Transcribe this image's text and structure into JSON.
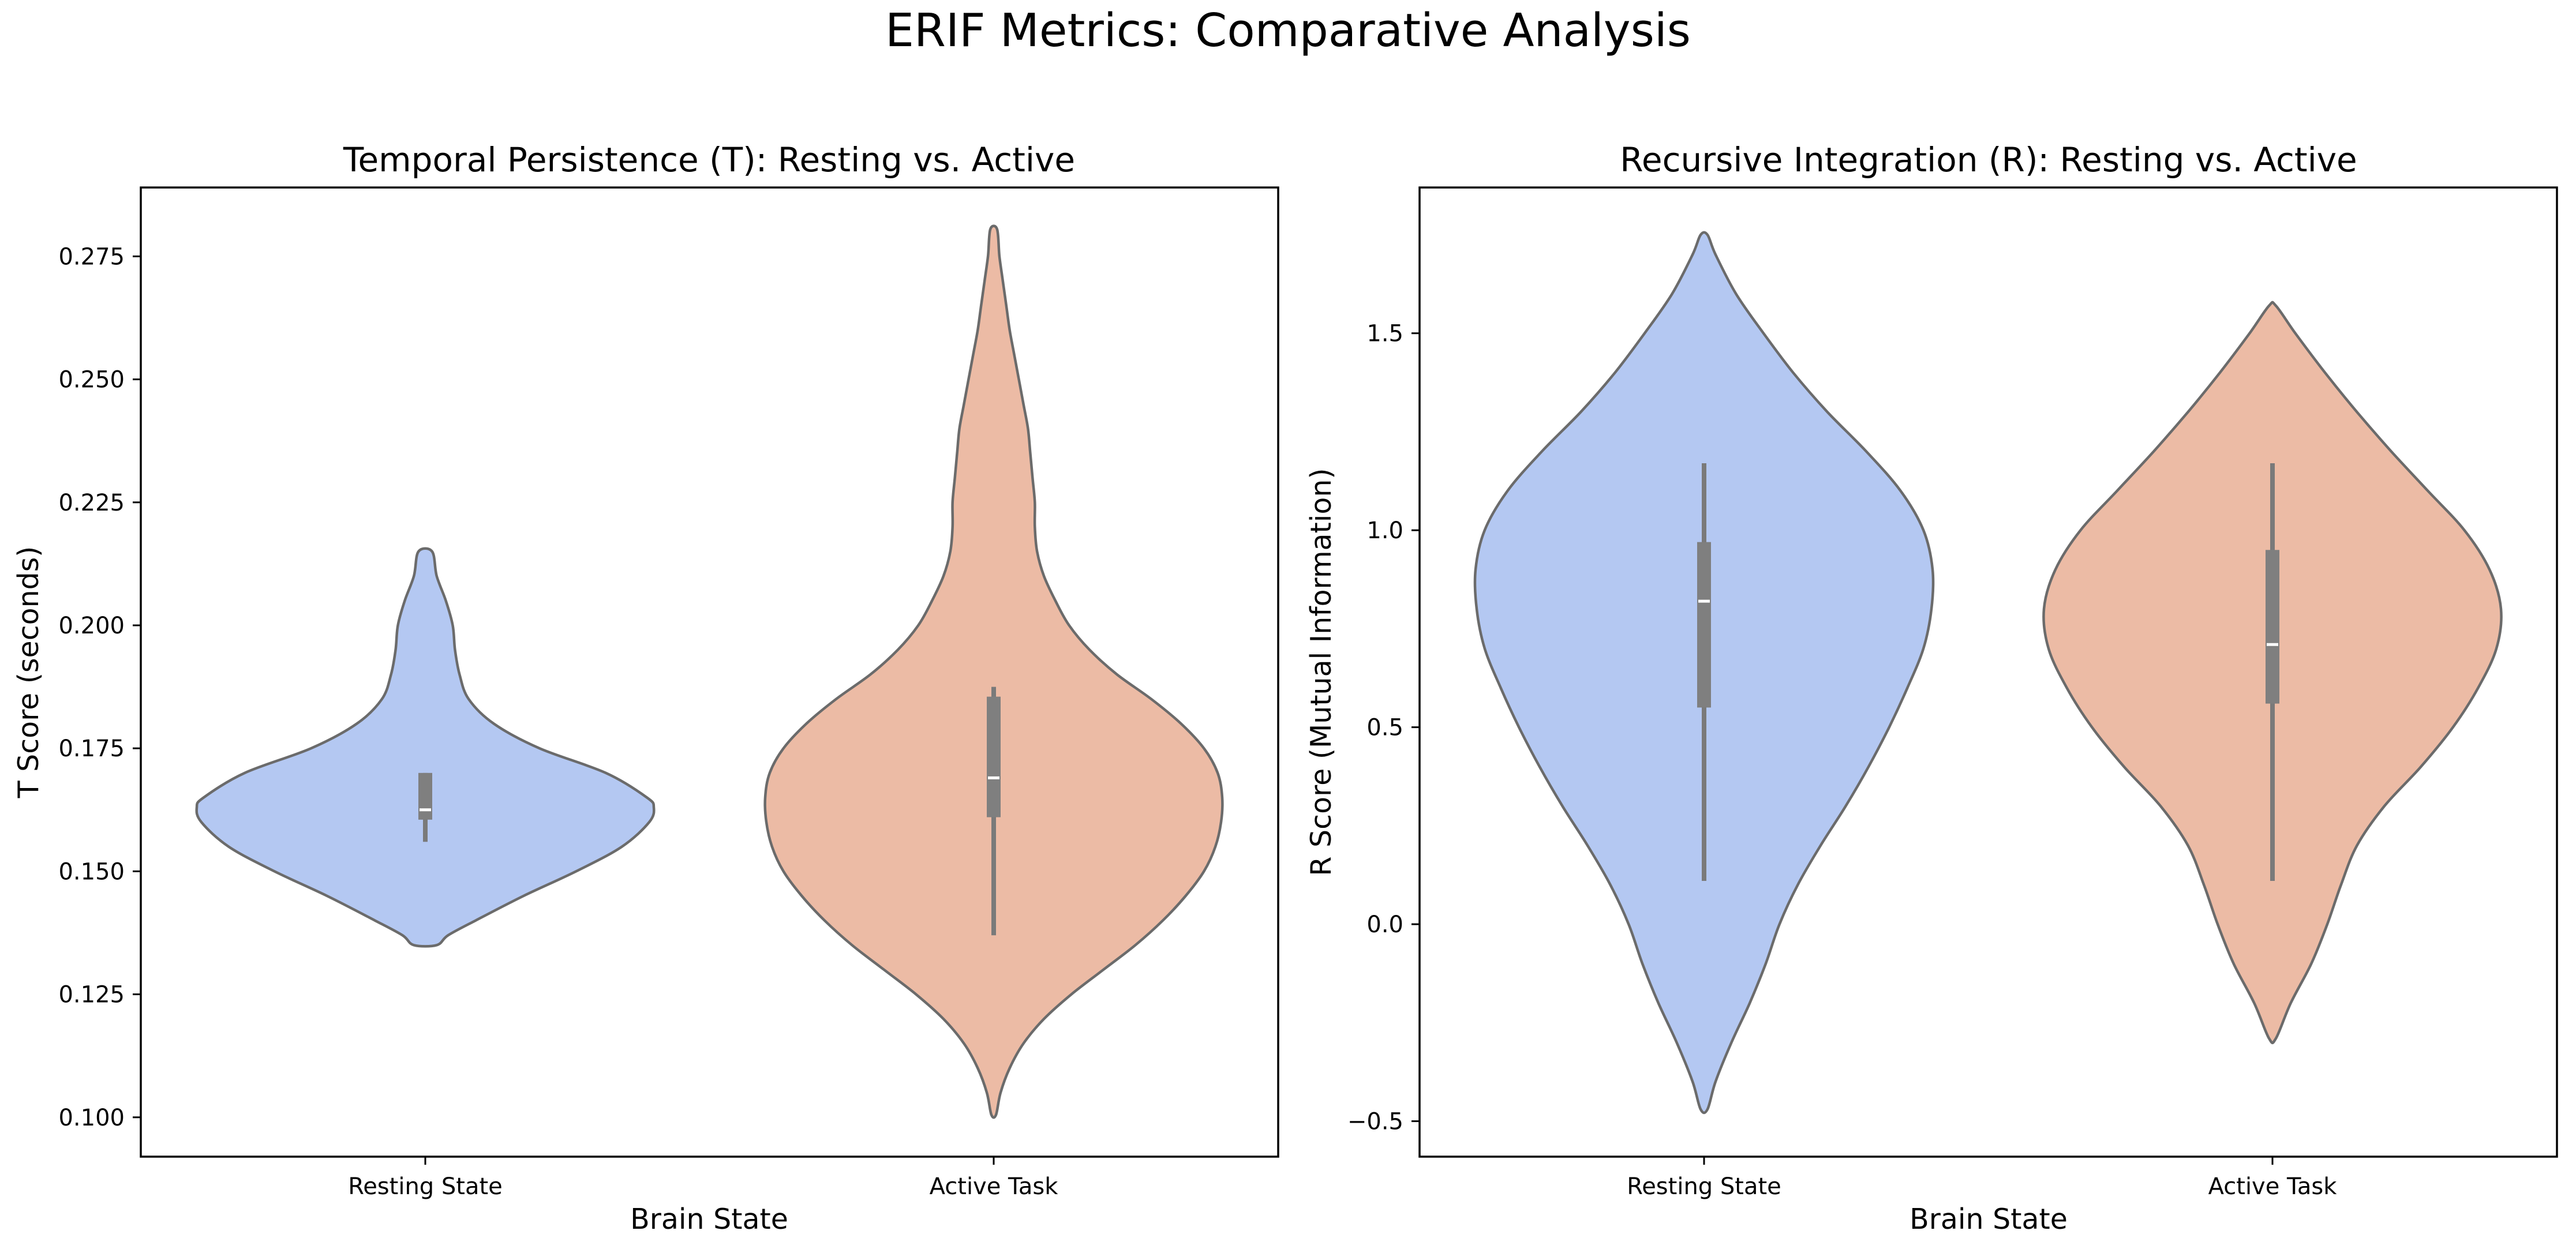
{
  "figure": {
    "suptitle": "ERIF Metrics: Comparative Analysis",
    "colors": {
      "resting": "#b4c8f2",
      "active": "#ecbba5",
      "outline": "#6b6b6b",
      "box": "#7f7f7f"
    }
  },
  "chart_data": [
    {
      "type": "violin",
      "title": "Temporal Persistence (T): Resting vs. Active",
      "xlabel": "Brain State",
      "ylabel": "T Score (seconds)",
      "categories": [
        "Resting State",
        "Active Task"
      ],
      "ylim": [
        0.092,
        0.289
      ],
      "yticks": [
        0.1,
        0.125,
        0.15,
        0.175,
        0.2,
        0.225,
        0.25,
        0.275
      ],
      "ytick_labels": [
        "0.100",
        "0.125",
        "0.150",
        "0.175",
        "0.200",
        "0.225",
        "0.250",
        "0.275"
      ],
      "grid": false,
      "series": [
        {
          "category": "Resting State",
          "color": "#b4c8f2",
          "min": 0.135,
          "max": 0.215,
          "whisker_low": 0.156,
          "q1": 0.1605,
          "median": 0.1625,
          "q3": 0.17,
          "whisker_high": 0.17,
          "density_profile": [
            [
              0.135,
              0.05
            ],
            [
              0.137,
              0.1
            ],
            [
              0.14,
              0.22
            ],
            [
              0.145,
              0.43
            ],
            [
              0.15,
              0.66
            ],
            [
              0.155,
              0.86
            ],
            [
              0.16,
              0.98
            ],
            [
              0.163,
              1.0
            ],
            [
              0.165,
              0.97
            ],
            [
              0.17,
              0.79
            ],
            [
              0.175,
              0.5
            ],
            [
              0.18,
              0.3
            ],
            [
              0.185,
              0.19
            ],
            [
              0.19,
              0.15
            ],
            [
              0.195,
              0.13
            ],
            [
              0.2,
              0.12
            ],
            [
              0.205,
              0.09
            ],
            [
              0.21,
              0.05
            ],
            [
              0.215,
              0.03
            ]
          ]
        },
        {
          "category": "Active Task",
          "color": "#ecbba5",
          "min": 0.1005,
          "max": 0.2805,
          "whisker_low": 0.137,
          "q1": 0.161,
          "median": 0.169,
          "q3": 0.1855,
          "whisker_high": 0.1875,
          "density_profile": [
            [
              0.1005,
              0.01
            ],
            [
              0.105,
              0.03
            ],
            [
              0.11,
              0.07
            ],
            [
              0.115,
              0.13
            ],
            [
              0.12,
              0.22
            ],
            [
              0.125,
              0.34
            ],
            [
              0.13,
              0.48
            ],
            [
              0.135,
              0.62
            ],
            [
              0.14,
              0.74
            ],
            [
              0.145,
              0.84
            ],
            [
              0.15,
              0.92
            ],
            [
              0.155,
              0.97
            ],
            [
              0.16,
              0.995
            ],
            [
              0.165,
              1.0
            ],
            [
              0.17,
              0.98
            ],
            [
              0.175,
              0.92
            ],
            [
              0.18,
              0.82
            ],
            [
              0.185,
              0.69
            ],
            [
              0.19,
              0.54
            ],
            [
              0.195,
              0.42
            ],
            [
              0.2,
              0.33
            ],
            [
              0.205,
              0.27
            ],
            [
              0.21,
              0.22
            ],
            [
              0.215,
              0.19
            ],
            [
              0.22,
              0.18
            ],
            [
              0.225,
              0.18
            ],
            [
              0.23,
              0.17
            ],
            [
              0.235,
              0.16
            ],
            [
              0.24,
              0.15
            ],
            [
              0.245,
              0.13
            ],
            [
              0.25,
              0.11
            ],
            [
              0.255,
              0.09
            ],
            [
              0.26,
              0.07
            ],
            [
              0.265,
              0.055
            ],
            [
              0.27,
              0.04
            ],
            [
              0.275,
              0.025
            ],
            [
              0.2805,
              0.015
            ]
          ]
        }
      ]
    },
    {
      "type": "violin",
      "title": "Recursive Integration (R): Resting vs. Active",
      "xlabel": "Brain State",
      "ylabel": "R Score (Mutual Information)",
      "categories": [
        "Resting State",
        "Active Task"
      ],
      "ylim": [
        -0.59,
        1.87
      ],
      "yticks": [
        -0.5,
        0.0,
        0.5,
        1.0,
        1.5
      ],
      "ytick_labels": [
        "−0.5",
        "0.0",
        "0.5",
        "1.0",
        "1.5"
      ],
      "grid": false,
      "series": [
        {
          "category": "Resting State",
          "color": "#b4c8f2",
          "min": -0.47,
          "max": 1.75,
          "whisker_low": 0.11,
          "q1": 0.55,
          "median": 0.82,
          "q3": 0.97,
          "whisker_high": 1.17,
          "density_profile": [
            [
              -0.47,
              0.015
            ],
            [
              -0.4,
              0.05
            ],
            [
              -0.3,
              0.12
            ],
            [
              -0.2,
              0.2
            ],
            [
              -0.1,
              0.27
            ],
            [
              0.0,
              0.33
            ],
            [
              0.1,
              0.41
            ],
            [
              0.2,
              0.51
            ],
            [
              0.3,
              0.62
            ],
            [
              0.4,
              0.72
            ],
            [
              0.5,
              0.81
            ],
            [
              0.6,
              0.89
            ],
            [
              0.7,
              0.96
            ],
            [
              0.8,
              0.995
            ],
            [
              0.9,
              1.0
            ],
            [
              1.0,
              0.96
            ],
            [
              1.1,
              0.86
            ],
            [
              1.2,
              0.71
            ],
            [
              1.3,
              0.54
            ],
            [
              1.4,
              0.39
            ],
            [
              1.5,
              0.26
            ],
            [
              1.6,
              0.14
            ],
            [
              1.7,
              0.05
            ],
            [
              1.75,
              0.015
            ]
          ]
        },
        {
          "category": "Active Task",
          "color": "#ecbba5",
          "min": -0.29,
          "max": 1.57,
          "whisker_low": 0.11,
          "q1": 0.56,
          "median": 0.71,
          "q3": 0.95,
          "whisker_high": 1.17,
          "density_profile": [
            [
              -0.29,
              0.015
            ],
            [
              -0.2,
              0.08
            ],
            [
              -0.1,
              0.17
            ],
            [
              0.0,
              0.24
            ],
            [
              0.1,
              0.3
            ],
            [
              0.2,
              0.37
            ],
            [
              0.3,
              0.49
            ],
            [
              0.4,
              0.65
            ],
            [
              0.5,
              0.79
            ],
            [
              0.6,
              0.9
            ],
            [
              0.7,
              0.98
            ],
            [
              0.8,
              1.0
            ],
            [
              0.9,
              0.95
            ],
            [
              1.0,
              0.84
            ],
            [
              1.1,
              0.68
            ],
            [
              1.2,
              0.52
            ],
            [
              1.3,
              0.37
            ],
            [
              1.4,
              0.23
            ],
            [
              1.5,
              0.1
            ],
            [
              1.57,
              0.015
            ]
          ]
        }
      ]
    }
  ]
}
